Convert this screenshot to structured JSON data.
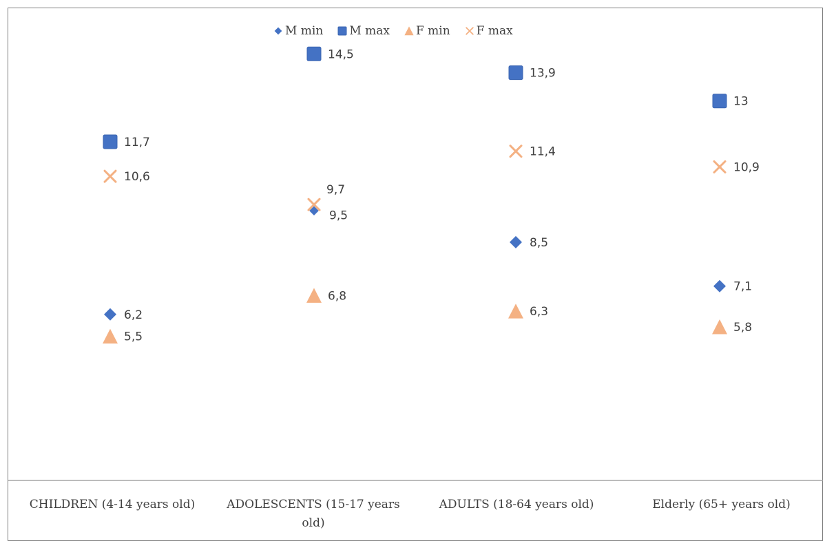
{
  "chart_data": {
    "type": "scatter",
    "categories": [
      "CHILDREN (4-14 years old)",
      "ADOLESCENTS (15-17 years old)",
      "ADULTS (18-64 years old)",
      "Elderly (65+ years old)"
    ],
    "series": [
      {
        "name": "M min",
        "marker": "diamond",
        "color": "#4472c4",
        "values": [
          6.2,
          9.5,
          8.5,
          7.1
        ],
        "labels": [
          "6,2",
          "9,5",
          "8,5",
          "7,1"
        ]
      },
      {
        "name": "M max",
        "marker": "square",
        "color": "#4472c4",
        "values": [
          11.7,
          14.5,
          13.9,
          13
        ],
        "labels": [
          "11,7",
          "14,5",
          "13,9",
          "13"
        ]
      },
      {
        "name": "F min",
        "marker": "triangle",
        "color": "#f4b183",
        "values": [
          5.5,
          6.8,
          6.3,
          5.8
        ],
        "labels": [
          "5,5",
          "6,8",
          "6,3",
          "5,8"
        ]
      },
      {
        "name": "F max",
        "marker": "x",
        "color": "#f4b183",
        "values": [
          10.6,
          9.7,
          11.4,
          10.9
        ],
        "labels": [
          "10,6",
          "9,7",
          "11,4",
          "10,9"
        ]
      }
    ],
    "legend_position": "top",
    "grid": false
  }
}
